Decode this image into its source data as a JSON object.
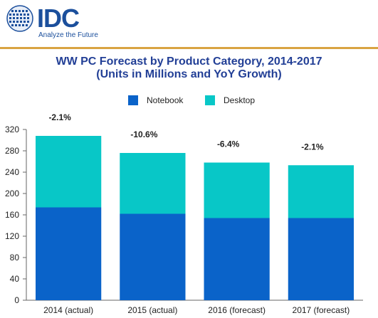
{
  "logo": {
    "name": "IDC",
    "tagline": "Analyze the Future"
  },
  "colors": {
    "notebook": "#0a63c9",
    "desktop": "#08c7c7",
    "title": "#223f96",
    "rule": "#d9a441",
    "brand": "#1b4f9c"
  },
  "chart_data": {
    "type": "bar",
    "stacked": true,
    "title": "WW PC Forecast by Product Category, 2014-2017",
    "subtitle": "(Units in Millions and YoY Growth)",
    "categories": [
      "2014 (actual)",
      "2015 (actual)",
      "2016 (forecast)",
      "2017 (forecast)"
    ],
    "series": [
      {
        "name": "Notebook",
        "values": [
          174,
          162,
          154,
          154
        ]
      },
      {
        "name": "Desktop",
        "values": [
          134,
          114,
          104,
          99
        ]
      }
    ],
    "growth_labels": [
      "-2.1%",
      "-10.6%",
      "-6.4%",
      "-2.1%"
    ],
    "ylim": [
      0,
      320
    ],
    "yticks": [
      0,
      40,
      80,
      120,
      160,
      200,
      240,
      280,
      320
    ],
    "grid": false,
    "legend_position": "top"
  }
}
